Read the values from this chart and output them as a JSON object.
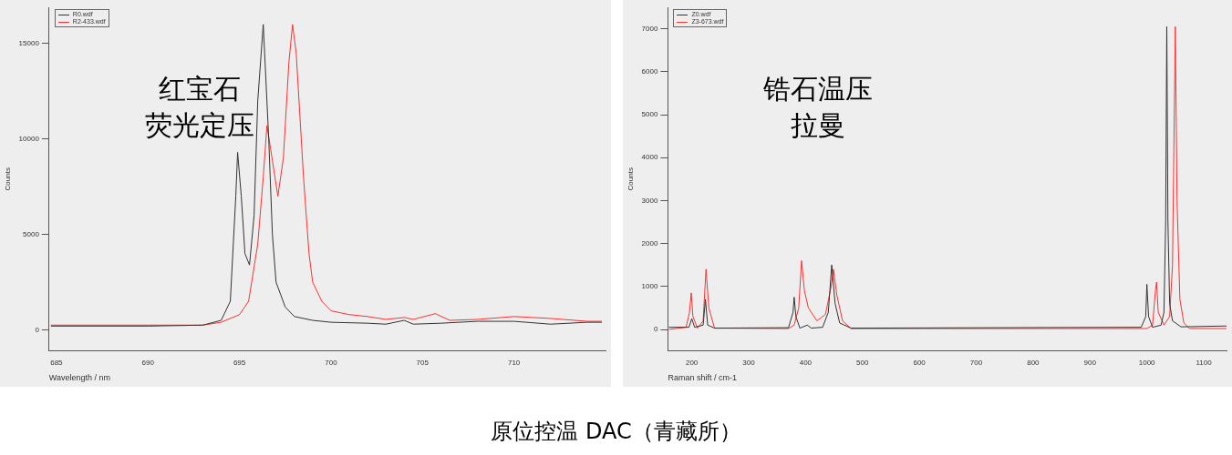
{
  "chart_data": [
    {
      "type": "line",
      "xlabel": "Wavelength / nm",
      "ylabel": "Counts",
      "xlim": [
        684.6,
        715
      ],
      "xticks": [
        685,
        690,
        695,
        700,
        705,
        710
      ],
      "ylim": [
        -1100,
        16900
      ],
      "yticks": [
        0,
        5000,
        10000,
        15000
      ],
      "legend": "top left",
      "grid": false,
      "marker": "none",
      "line_style": "solid",
      "annotations": [
        "红宝石",
        "荧光定压",
        "原位控温 DAC（青藏所）"
      ],
      "series": [
        {
          "name": "R0.wdf",
          "color": "#333333",
          "x": [
            684.7,
            687,
            690,
            693,
            694,
            694.5,
            694.8,
            694.9,
            695.1,
            695.3,
            695.55,
            695.8,
            696,
            696.3,
            696.6,
            696.8,
            697,
            697.5,
            698,
            699,
            700,
            702,
            703,
            704,
            704.5,
            706,
            708,
            710,
            712,
            714,
            714.8
          ],
          "values": [
            200,
            200,
            200,
            250,
            500,
            1500,
            7000,
            9300,
            7000,
            4000,
            3400,
            6000,
            12000,
            16000,
            10000,
            5000,
            2500,
            1200,
            700,
            500,
            400,
            350,
            300,
            500,
            300,
            350,
            450,
            450,
            300,
            400,
            400
          ]
        },
        {
          "name": "R2-433.wdf",
          "color": "#ff3030",
          "x": [
            684.7,
            693,
            694,
            695,
            695.5,
            696,
            696.3,
            696.5,
            696.7,
            697.1,
            697.4,
            697.7,
            697.9,
            698.1,
            698.5,
            698.8,
            699,
            699.5,
            700,
            701,
            702,
            703,
            704,
            704.5,
            705.7,
            706.5,
            708,
            710,
            712,
            714,
            714.8
          ],
          "values": [
            250,
            250,
            400,
            800,
            1500,
            4500,
            8000,
            10700,
            9500,
            7000,
            9000,
            14000,
            16000,
            14500,
            8000,
            4000,
            2500,
            1500,
            1000,
            800,
            700,
            550,
            650,
            550,
            850,
            500,
            550,
            700,
            600,
            450,
            450
          ]
        }
      ]
    },
    {
      "type": "line",
      "xlabel": "Raman shift / cm-1",
      "ylabel": "Counts",
      "xlim": [
        158,
        1140
      ],
      "xticks": [
        200,
        300,
        400,
        500,
        600,
        700,
        800,
        900,
        1000,
        1100
      ],
      "ylim": [
        -500,
        7500
      ],
      "yticks": [
        0,
        1000,
        2000,
        3000,
        4000,
        5000,
        6000,
        7000
      ],
      "legend": "top left",
      "grid": false,
      "marker": "none",
      "line_style": "solid",
      "annotations": [
        "锆石温压",
        "拉曼"
      ],
      "series": [
        {
          "name": "Z0.wdf",
          "color": "#333333",
          "x": [
            160,
            195,
            200,
            205,
            220,
            224,
            228,
            240,
            370,
            378,
            380,
            383,
            390,
            403,
            410,
            430,
            440,
            446,
            452,
            460,
            480,
            990,
            998,
            1000,
            1003,
            1010,
            1025,
            1030,
            1033,
            1035,
            1037,
            1040,
            1045,
            1060,
            1140
          ],
          "values": [
            50,
            50,
            250,
            50,
            100,
            700,
            100,
            30,
            40,
            400,
            750,
            300,
            30,
            100,
            30,
            50,
            400,
            1500,
            600,
            150,
            30,
            50,
            300,
            1050,
            300,
            50,
            100,
            400,
            2500,
            7050,
            2500,
            600,
            200,
            60,
            80
          ]
        },
        {
          "name": "Z3-673.wdf",
          "color": "#ff3030",
          "x": [
            160,
            190,
            196,
            199,
            202,
            210,
            220,
            225,
            230,
            240,
            370,
            380,
            388,
            393,
            398,
            405,
            420,
            435,
            445,
            449,
            455,
            465,
            480,
            1000,
            1010,
            1015,
            1017,
            1020,
            1030,
            1040,
            1045,
            1050,
            1053,
            1058,
            1065,
            1075,
            1140
          ],
          "values": [
            0,
            50,
            400,
            850,
            300,
            30,
            200,
            1400,
            500,
            30,
            20,
            100,
            500,
            1600,
            900,
            500,
            200,
            350,
            1000,
            1400,
            800,
            200,
            20,
            20,
            100,
            900,
            1100,
            400,
            100,
            300,
            1500,
            7050,
            3000,
            700,
            150,
            20,
            20
          ]
        }
      ]
    }
  ]
}
